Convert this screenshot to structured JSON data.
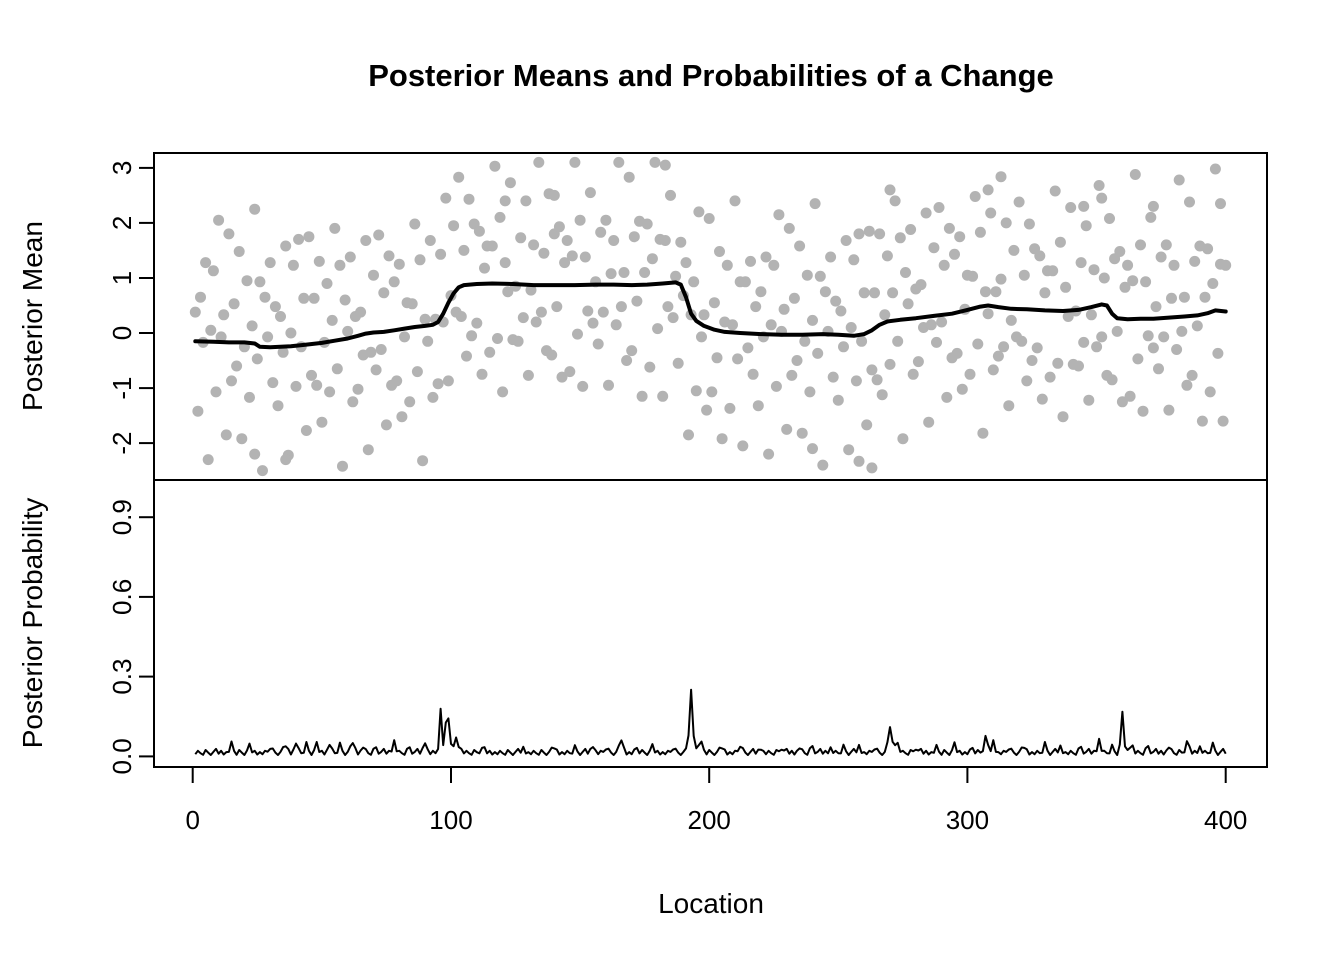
{
  "title": "Posterior Means and Probabilities of a Change",
  "xlabel": "Location",
  "colors": {
    "points": "#b3b3b3",
    "lines": "#000000",
    "background": "#ffffff"
  },
  "chart_data": [
    {
      "type": "scatter",
      "panel": "top",
      "ylabel": "Posterior Mean",
      "xlim": [
        -15,
        416
      ],
      "ylim": [
        -2.67,
        3.27
      ],
      "xticks": [
        0,
        100,
        200,
        300,
        400
      ],
      "xtick_labels": [
        "0",
        "100",
        "200",
        "300",
        "400"
      ],
      "ytick_values": [
        3,
        2,
        1,
        0,
        -1,
        -2
      ],
      "ytick_labels": [
        "3",
        "2",
        "1",
        "0",
        "-1",
        "-2"
      ],
      "grid": false,
      "n_points": 400,
      "point_color": "#b3b3b3",
      "segments": [
        [
          1,
          95,
          -0.1
        ],
        [
          96,
          190,
          0.85
        ],
        [
          191,
          265,
          0.0
        ],
        [
          266,
          400,
          0.4
        ]
      ],
      "noise_primary": [
        0.3,
        -1.1,
        0.7,
        -0.35,
        1.5,
        -1.9,
        0.05,
        1.05,
        -0.75,
        2.1,
        -0.25,
        0.55,
        -1.45,
        1.8,
        -0.95,
        0.85,
        -0.55,
        1.3,
        -1.7,
        0.15,
        0.95,
        -1.25,
        0.45,
        2.3,
        -0.65,
        1.15,
        -2.1,
        0.65,
        -0.15,
        1.6,
        -0.85
      ],
      "noise_secondary": [
        0.18,
        -0.22,
        0.05,
        0.28,
        -0.12,
        -0.3,
        0.1
      ],
      "clamp": [
        -2.5,
        3.1
      ],
      "extra_points": [
        [
          183,
          3.05
        ],
        [
          313,
          2.84
        ],
        [
          308,
          2.6
        ],
        [
          270,
          2.6
        ],
        [
          140,
          2.5
        ],
        [
          121,
          2.4
        ],
        [
          352,
          2.45
        ],
        [
          345,
          2.3
        ],
        [
          398,
          2.35
        ],
        [
          372,
          2.3
        ],
        [
          263,
          -2.45
        ],
        [
          258,
          -2.33
        ],
        [
          240,
          -2.1
        ],
        [
          24,
          -2.2
        ],
        [
          36,
          -2.3
        ]
      ],
      "mean_line": [
        [
          1,
          -0.15
        ],
        [
          8,
          -0.16
        ],
        [
          14,
          -0.17
        ],
        [
          20,
          -0.17
        ],
        [
          24,
          -0.19
        ],
        [
          26,
          -0.25
        ],
        [
          30,
          -0.26
        ],
        [
          34,
          -0.25
        ],
        [
          38,
          -0.24
        ],
        [
          44,
          -0.21
        ],
        [
          50,
          -0.18
        ],
        [
          55,
          -0.14
        ],
        [
          60,
          -0.1
        ],
        [
          64,
          -0.05
        ],
        [
          67,
          -0.01
        ],
        [
          70,
          0.01
        ],
        [
          74,
          0.02
        ],
        [
          78,
          0.05
        ],
        [
          82,
          0.08
        ],
        [
          86,
          0.11
        ],
        [
          90,
          0.13
        ],
        [
          93,
          0.15
        ],
        [
          95,
          0.2
        ],
        [
          97,
          0.35
        ],
        [
          99,
          0.55
        ],
        [
          101,
          0.72
        ],
        [
          103,
          0.83
        ],
        [
          105,
          0.87
        ],
        [
          110,
          0.89
        ],
        [
          116,
          0.9
        ],
        [
          124,
          0.89
        ],
        [
          132,
          0.87
        ],
        [
          140,
          0.87
        ],
        [
          148,
          0.87
        ],
        [
          156,
          0.88
        ],
        [
          163,
          0.88
        ],
        [
          170,
          0.87
        ],
        [
          176,
          0.88
        ],
        [
          182,
          0.9
        ],
        [
          187,
          0.92
        ],
        [
          189,
          0.88
        ],
        [
          191,
          0.65
        ],
        [
          193,
          0.35
        ],
        [
          195,
          0.22
        ],
        [
          198,
          0.13
        ],
        [
          202,
          0.06
        ],
        [
          206,
          0.02
        ],
        [
          212,
          0.0
        ],
        [
          220,
          -0.02
        ],
        [
          228,
          -0.03
        ],
        [
          236,
          -0.03
        ],
        [
          244,
          -0.02
        ],
        [
          250,
          -0.03
        ],
        [
          256,
          -0.05
        ],
        [
          260,
          -0.02
        ],
        [
          263,
          0.05
        ],
        [
          266,
          0.15
        ],
        [
          269,
          0.21
        ],
        [
          274,
          0.24
        ],
        [
          280,
          0.27
        ],
        [
          287,
          0.31
        ],
        [
          294,
          0.35
        ],
        [
          300,
          0.42
        ],
        [
          305,
          0.48
        ],
        [
          308,
          0.5
        ],
        [
          312,
          0.47
        ],
        [
          317,
          0.44
        ],
        [
          323,
          0.43
        ],
        [
          330,
          0.41
        ],
        [
          337,
          0.4
        ],
        [
          343,
          0.42
        ],
        [
          348,
          0.47
        ],
        [
          352,
          0.52
        ],
        [
          354,
          0.5
        ],
        [
          356,
          0.35
        ],
        [
          358,
          0.27
        ],
        [
          362,
          0.25
        ],
        [
          367,
          0.26
        ],
        [
          372,
          0.26
        ],
        [
          378,
          0.28
        ],
        [
          384,
          0.3
        ],
        [
          389,
          0.32
        ],
        [
          393,
          0.36
        ],
        [
          396,
          0.41
        ],
        [
          400,
          0.39
        ]
      ]
    },
    {
      "type": "line",
      "panel": "bottom",
      "ylabel": "Posterior Probability",
      "xlim": [
        -15,
        416
      ],
      "ylim": [
        -0.04,
        1.04
      ],
      "ytick_values": [
        0.9,
        0.6,
        0.3,
        0.0
      ],
      "ytick_labels": [
        "0.9",
        "0.6",
        "0.3",
        "0.0"
      ],
      "grid": false,
      "x_range": [
        1,
        400
      ],
      "baseline": 0.012,
      "baseline_wiggle": [
        0.004,
        -0.004,
        0.009,
        0.0,
        -0.006,
        0.012,
        0.002,
        -0.007,
        0.005,
        0.016,
        -0.002,
        0.009,
        -0.005
      ],
      "spikes": [
        [
          15,
          0.035,
          2
        ],
        [
          22,
          0.02,
          2
        ],
        [
          30,
          0.022,
          2
        ],
        [
          36,
          0.028,
          2
        ],
        [
          40,
          0.04,
          2
        ],
        [
          44,
          0.03,
          2
        ],
        [
          48,
          0.026,
          2
        ],
        [
          53,
          0.035,
          2
        ],
        [
          57,
          0.028,
          2
        ],
        [
          62,
          0.04,
          2
        ],
        [
          66,
          0.025,
          2
        ],
        [
          71,
          0.02,
          2
        ],
        [
          78,
          0.045,
          2
        ],
        [
          84,
          0.02,
          2
        ],
        [
          90,
          0.042,
          2
        ],
        [
          96,
          0.155,
          1.6
        ],
        [
          98.5,
          0.235,
          1.8
        ],
        [
          102,
          0.05,
          4
        ],
        [
          112,
          0.015,
          3
        ],
        [
          128,
          0.015,
          2
        ],
        [
          140,
          0.02,
          2
        ],
        [
          148,
          0.018,
          2
        ],
        [
          155,
          0.028,
          2
        ],
        [
          160,
          0.02,
          2
        ],
        [
          166,
          0.05,
          2
        ],
        [
          172,
          0.02,
          2
        ],
        [
          178,
          0.018,
          2
        ],
        [
          186,
          0.02,
          2
        ],
        [
          193,
          0.23,
          2.2
        ],
        [
          196.5,
          0.05,
          3
        ],
        [
          205,
          0.02,
          2
        ],
        [
          212,
          0.03,
          2
        ],
        [
          220,
          0.018,
          2
        ],
        [
          228,
          0.02,
          2
        ],
        [
          235,
          0.022,
          2
        ],
        [
          240,
          0.025,
          2
        ],
        [
          247,
          0.018,
          2
        ],
        [
          252,
          0.02,
          2
        ],
        [
          258,
          0.022,
          2
        ],
        [
          264,
          0.02,
          2
        ],
        [
          270,
          0.1,
          2
        ],
        [
          272.5,
          0.055,
          2.5
        ],
        [
          280,
          0.02,
          2
        ],
        [
          288,
          0.022,
          2
        ],
        [
          295,
          0.025,
          2
        ],
        [
          302,
          0.02,
          2
        ],
        [
          307,
          0.06,
          2
        ],
        [
          310,
          0.04,
          2
        ],
        [
          316,
          0.02,
          2
        ],
        [
          322,
          0.022,
          2
        ],
        [
          330,
          0.03,
          2
        ],
        [
          336,
          0.02,
          2
        ],
        [
          344,
          0.022,
          2
        ],
        [
          351,
          0.05,
          2
        ],
        [
          356,
          0.02,
          2
        ],
        [
          360,
          0.14,
          1.8
        ],
        [
          363.5,
          0.045,
          2
        ],
        [
          370,
          0.025,
          2
        ],
        [
          378,
          0.025,
          2
        ],
        [
          385,
          0.04,
          2
        ],
        [
          390,
          0.022,
          2
        ],
        [
          395,
          0.028,
          2
        ]
      ]
    }
  ]
}
